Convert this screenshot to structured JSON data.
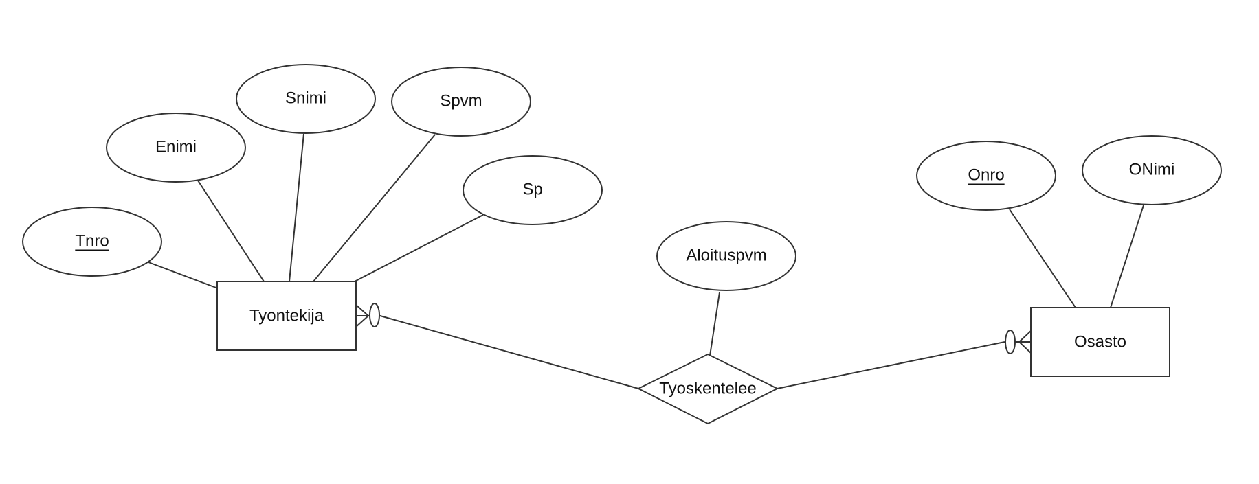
{
  "entities": {
    "tyontekija": "Tyontekija",
    "osasto": "Osasto"
  },
  "relationship": {
    "tyoskentelee": "Tyoskentelee"
  },
  "attributes": {
    "tnro": "Tnro",
    "enimi": "Enimi",
    "snimi": "Snimi",
    "spvm": "Spvm",
    "sp": "Sp",
    "aloituspvm": "Aloituspvm",
    "onro": "Onro",
    "onimi": "ONimi"
  },
  "colors": {
    "stroke": "#333333",
    "fill": "#ffffff"
  }
}
